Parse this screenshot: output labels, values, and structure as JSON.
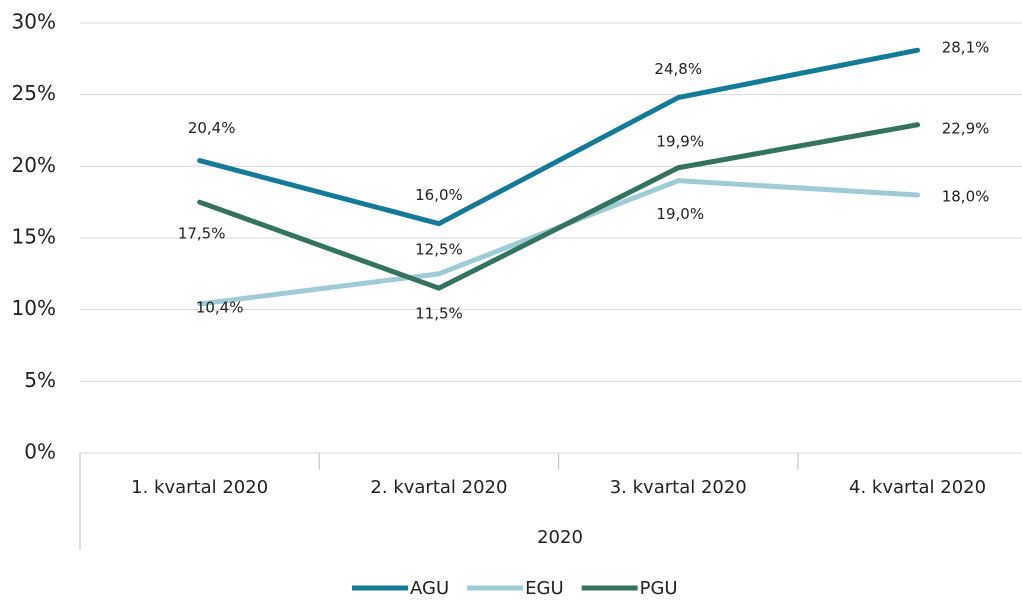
{
  "chart_data": {
    "type": "line",
    "categories": [
      "1. kvartal 2020",
      "2. kvartal 2020",
      "3. kvartal 2020",
      "4. kvartal 2020"
    ],
    "xlabel": "2020",
    "series": [
      {
        "name": "AGU",
        "color": "#137b97",
        "values": [
          20.4,
          16.0,
          24.8,
          28.1
        ],
        "value_labels": [
          "20,4%",
          "16,0%",
          "24,8%",
          "28,1%"
        ]
      },
      {
        "name": "EGU",
        "color": "#9ecbd5",
        "values": [
          10.4,
          12.5,
          19.0,
          18.0
        ],
        "value_labels": [
          "10,4%",
          "12,5%",
          "19,0%",
          "18,0%"
        ]
      },
      {
        "name": "PGU",
        "color": "#33735f",
        "values": [
          17.5,
          11.5,
          19.9,
          22.9
        ],
        "value_labels": [
          "17,5%",
          "11,5%",
          "19,9%",
          "22,9%"
        ]
      }
    ],
    "ylim": [
      0,
      30
    ],
    "yticks": [
      {
        "value": 0,
        "label": "0%"
      },
      {
        "value": 5,
        "label": "5%"
      },
      {
        "value": 10,
        "label": "10%"
      },
      {
        "value": 15,
        "label": "15%"
      },
      {
        "value": 20,
        "label": "20%"
      },
      {
        "value": 25,
        "label": "25%"
      },
      {
        "value": 30,
        "label": "30%"
      }
    ],
    "grid": true,
    "legend": "bottom"
  }
}
